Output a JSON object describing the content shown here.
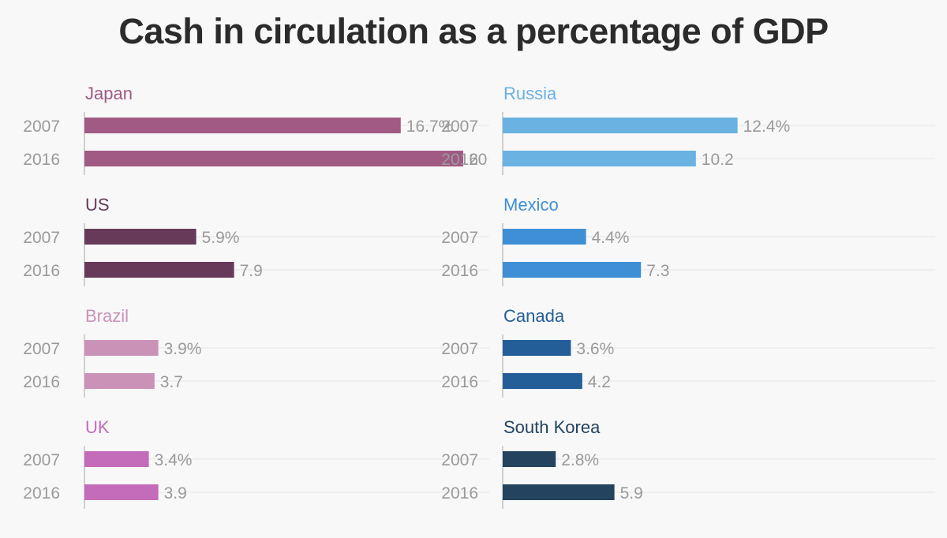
{
  "chart_data": {
    "type": "bar",
    "title": "Cash in circulation as a percentage of GDP",
    "categories": [
      "2007",
      "2016"
    ],
    "xlim": [
      0,
      20
    ],
    "grid": true,
    "panels": [
      {
        "name": "Japan",
        "color": "#a05a84",
        "values": [
          16.7,
          20
        ],
        "labels": [
          "16.7%",
          "20"
        ]
      },
      {
        "name": "US",
        "color": "#663a58",
        "values": [
          5.9,
          7.9
        ],
        "labels": [
          "5.9%",
          "7.9"
        ]
      },
      {
        "name": "Brazil",
        "color": "#cb92b8",
        "values": [
          3.9,
          3.7
        ],
        "labels": [
          "3.9%",
          "3.7"
        ]
      },
      {
        "name": "UK",
        "color": "#c46bba",
        "values": [
          3.4,
          3.9
        ],
        "labels": [
          "3.4%",
          "3.9"
        ]
      },
      {
        "name": "Russia",
        "color": "#69b2e2",
        "values": [
          12.4,
          10.2
        ],
        "labels": [
          "12.4%",
          "10.2"
        ]
      },
      {
        "name": "Mexico",
        "color": "#3e8fd6",
        "values": [
          4.4,
          7.3
        ],
        "labels": [
          "4.4%",
          "7.3"
        ]
      },
      {
        "name": "Canada",
        "color": "#245e98",
        "values": [
          3.6,
          4.2
        ],
        "labels": [
          "3.6%",
          "4.2"
        ]
      },
      {
        "name": "South Korea",
        "color": "#23435f",
        "values": [
          2.8,
          5.9
        ],
        "labels": [
          "2.8%",
          "5.9"
        ]
      }
    ]
  }
}
